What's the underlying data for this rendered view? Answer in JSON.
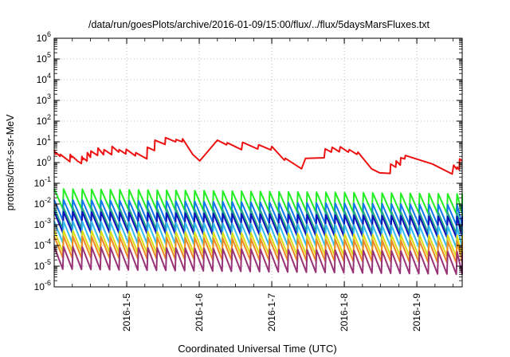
{
  "chart_data": {
    "type": "line",
    "title": "/data/run/goesPlots/archive/2016-01-09/15:00/flux/../flux/5daysMarsFluxes.txt",
    "xlabel": "Coordinated Universal Time (UTC)",
    "ylabel": "protons/cm²-s-sr-MeV",
    "yscale": "log",
    "ylim": [
      1e-06,
      1000000.0
    ],
    "yticks": [
      {
        "base": "10",
        "exp": "-6"
      },
      {
        "base": "10",
        "exp": "-5"
      },
      {
        "base": "10",
        "exp": "-4"
      },
      {
        "base": "10",
        "exp": "-3"
      },
      {
        "base": "10",
        "exp": "-2"
      },
      {
        "base": "10",
        "exp": "-1"
      },
      {
        "base": "10",
        "exp": "0"
      },
      {
        "base": "10",
        "exp": "1"
      },
      {
        "base": "10",
        "exp": "2"
      },
      {
        "base": "10",
        "exp": "3"
      },
      {
        "base": "10",
        "exp": "4"
      },
      {
        "base": "10",
        "exp": "5"
      },
      {
        "base": "10",
        "exp": "6"
      }
    ],
    "xlim": [
      "2016-01-04 00:00",
      "2016-01-09 15:00"
    ],
    "xticks": [
      "2016-1-5",
      "2016-1-6",
      "2016-1-7",
      "2016-1-8",
      "2016-1-9"
    ],
    "grid": true,
    "legend": "none",
    "series": [
      {
        "color": "#ee1111",
        "x": [
          "2016-01-04 00:00",
          "2016-01-04 00:35",
          "2016-01-04 00:40",
          "2016-01-04 01:55",
          "2016-01-04 02:00",
          "2016-01-04 04:00",
          "2016-01-04 05:10",
          "2016-01-04 05:20",
          "2016-01-04 05:50",
          "2016-01-04 06:00",
          "2016-01-04 07:40",
          "2016-01-04 09:00",
          "2016-01-04 09:10",
          "2016-01-04 09:30",
          "2016-01-04 09:40",
          "2016-01-04 10:50",
          "2016-01-04 11:00",
          "2016-01-04 12:00",
          "2016-01-04 12:10",
          "2016-01-04 14:20",
          "2016-01-04 14:30",
          "2016-01-04 16:20",
          "2016-01-04 16:30",
          "2016-01-04 19:00",
          "2016-01-04 19:10",
          "2016-01-04 21:20",
          "2016-01-04 21:30",
          "2016-01-04 23:40",
          "2016-01-04 23:50",
          "2016-01-05 02:50",
          "2016-01-05 03:00",
          "2016-01-05 06:40",
          "2016-01-05 06:50",
          "2016-01-05 09:10",
          "2016-01-05 09:20",
          "2016-01-05 12:40",
          "2016-01-05 12:50",
          "2016-01-05 16:10",
          "2016-01-05 16:20",
          "2016-01-05 18:20",
          "2016-01-05 18:30",
          "2016-01-05 21:50",
          "2016-01-06 00:10",
          "2016-01-06 06:00",
          "2016-01-06 09:00",
          "2016-01-06 09:20",
          "2016-01-06 14:00",
          "2016-01-06 14:20",
          "2016-01-06 19:20",
          "2016-01-06 19:40",
          "2016-01-06 23:40",
          "2016-01-07 00:00",
          "2016-01-07 04:10",
          "2016-01-07 04:30",
          "2016-01-07 09:50",
          "2016-01-07 11:10",
          "2016-01-07 17:20",
          "2016-01-07 17:40",
          "2016-01-07 19:40",
          "2016-01-07 20:00",
          "2016-01-07 22:20",
          "2016-01-07 22:40",
          "2016-01-08 01:20",
          "2016-01-08 01:40",
          "2016-01-08 04:10",
          "2016-01-08 04:30",
          "2016-01-08 09:00",
          "2016-01-08 11:40",
          "2016-01-08 15:10",
          "2016-01-08 15:20",
          "2016-01-08 17:00",
          "2016-01-08 17:10",
          "2016-01-08 18:30",
          "2016-01-08 18:40",
          "2016-01-08 20:00",
          "2016-01-08 20:10",
          "2016-01-09 05:10",
          "2016-01-09 11:40",
          "2016-01-09 12:10",
          "2016-01-09 13:10",
          "2016-01-09 13:20",
          "2016-01-09 14:00",
          "2016-01-09 14:10",
          "2016-01-09 15:00"
        ],
        "y": [
          4,
          2.5,
          3,
          2,
          2.5,
          1.5,
          1.1,
          2.5,
          1.8,
          2,
          1.2,
          0.9,
          2,
          1.4,
          1.6,
          1.2,
          3,
          1.8,
          3.6,
          2.2,
          5,
          2.4,
          4.2,
          2.4,
          6,
          3.2,
          4.2,
          2.6,
          4.4,
          2.1,
          3,
          1.5,
          5.5,
          3.8,
          12,
          7.5,
          16,
          10,
          13,
          10,
          14,
          2.5,
          1.2,
          12,
          7.2,
          9,
          4.2,
          9.5,
          4.5,
          7.2,
          4.1,
          6,
          1.3,
          1.6,
          0.5,
          1.6,
          1.7,
          4.6,
          3.2,
          5.5,
          3.3,
          5.8,
          3.2,
          4.2,
          2.5,
          3.2,
          0.5,
          0.32,
          0.3,
          0.85,
          0.6,
          1.2,
          0.75,
          1.7,
          1.5,
          2.2,
          0.85,
          0.28,
          0.75,
          0.48,
          0.6,
          0.45,
          1.5,
          1.2
        ]
      },
      {
        "color": "#22ee22",
        "periodic": true,
        "period_hours": 3.1,
        "base": 0.018,
        "amplitude": 3.0,
        "trend": -0.25
      },
      {
        "color": "#1177ee",
        "periodic": true,
        "period_hours": 3.1,
        "base": 0.0052,
        "amplitude": 3.1,
        "trend": -0.25
      },
      {
        "color": "#22aa88",
        "periodic": true,
        "period_hours": 3.1,
        "base": 0.0021,
        "amplitude": 3.2,
        "trend": -0.25
      },
      {
        "color": "#1111bb",
        "periodic": true,
        "period_hours": 3.1,
        "base": 0.00135,
        "amplitude": 3.2,
        "trend": -0.25
      },
      {
        "color": "#33bbee",
        "periodic": true,
        "period_hours": 3.1,
        "base": 0.00045,
        "amplitude": 3.3,
        "trend": -0.25
      },
      {
        "color": "#dddd11",
        "periodic": true,
        "period_hours": 3.1,
        "base": 0.00016,
        "amplitude": 3.3,
        "trend": -0.25
      },
      {
        "color": "#ee8822",
        "periodic": true,
        "period_hours": 3.1,
        "base": 8.5e-05,
        "amplitude": 3.3,
        "trend": -0.25
      },
      {
        "color": "#993377",
        "periodic": true,
        "period_hours": 3.1,
        "base": 2.5e-05,
        "amplitude": 3.5,
        "trend": -0.25
      }
    ]
  }
}
